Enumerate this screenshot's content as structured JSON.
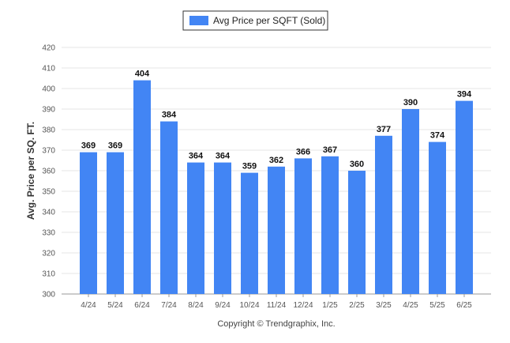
{
  "chart_data": {
    "type": "bar",
    "title": "",
    "legend": {
      "position": "top-center",
      "entries": [
        "Avg Price per SQFT (Sold)"
      ]
    },
    "xlabel": "",
    "ylabel": "Avg. Price per SQ. FT.",
    "categories": [
      "4/24",
      "5/24",
      "6/24",
      "7/24",
      "8/24",
      "9/24",
      "10/24",
      "11/24",
      "12/24",
      "1/25",
      "2/25",
      "3/25",
      "4/25",
      "5/25",
      "6/25"
    ],
    "series": [
      {
        "name": "Avg Price per SQFT (Sold)",
        "color": "#4285f4",
        "values": [
          369,
          369,
          404,
          384,
          364,
          364,
          359,
          362,
          366,
          367,
          360,
          377,
          390,
          374,
          394
        ]
      }
    ],
    "ylim": [
      300,
      420
    ],
    "yticks": [
      300,
      310,
      320,
      330,
      340,
      350,
      360,
      370,
      380,
      390,
      400,
      410,
      420
    ],
    "grid": true,
    "data_labels": true
  },
  "footer": {
    "copyright": "Copyright © Trendgraphix, Inc."
  }
}
